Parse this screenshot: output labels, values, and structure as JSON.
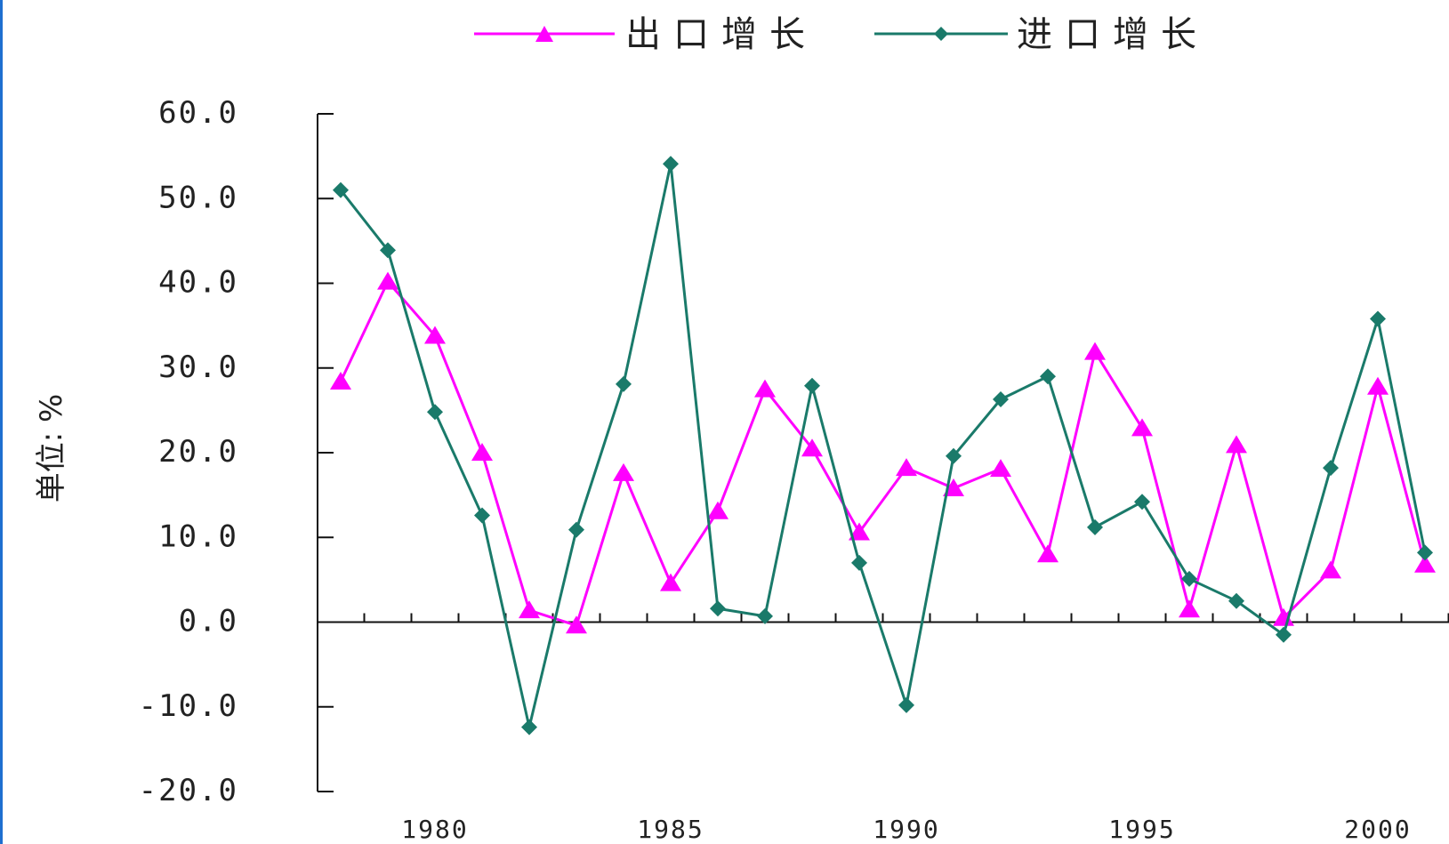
{
  "colors": {
    "export": "#ff00ff",
    "import": "#1a7a6a",
    "axis": "#111111",
    "frame": "#1e6fd0"
  },
  "chart_data": {
    "type": "line",
    "ylabel": "单位: %",
    "xlabel": "",
    "ylim": [
      -20,
      60
    ],
    "yticks": [
      "60.0",
      "50.0",
      "40.0",
      "30.0",
      "20.0",
      "10.0",
      "0.0",
      "-10.0",
      "-20.0"
    ],
    "xticks": [
      "1980",
      "1985",
      "1990",
      "1995",
      "2000"
    ],
    "legend_position": "top",
    "x": [
      1978,
      1979,
      1980,
      1981,
      1982,
      1983,
      1984,
      1985,
      1986,
      1987,
      1988,
      1989,
      1990,
      1991,
      1992,
      1993,
      1994,
      1995,
      1996,
      1997,
      1998,
      1999,
      2000,
      2001
    ],
    "series": [
      {
        "name": "出口增长",
        "key": "export",
        "marker": "triangle",
        "values": [
          28.4,
          40.2,
          33.8,
          20.0,
          1.4,
          -0.4,
          17.6,
          4.6,
          13.1,
          27.5,
          20.5,
          10.6,
          18.2,
          15.8,
          18.1,
          8.0,
          31.9,
          22.9,
          1.5,
          20.9,
          0.5,
          6.1,
          27.8,
          6.8
        ]
      },
      {
        "name": "进口增长",
        "key": "import",
        "marker": "diamond",
        "values": [
          51.0,
          43.9,
          24.8,
          12.6,
          -12.4,
          10.9,
          28.1,
          54.1,
          1.6,
          0.7,
          27.9,
          7.0,
          -9.8,
          19.6,
          26.3,
          29.0,
          11.2,
          14.2,
          5.1,
          2.5,
          -1.5,
          18.2,
          35.8,
          8.2
        ]
      }
    ]
  }
}
